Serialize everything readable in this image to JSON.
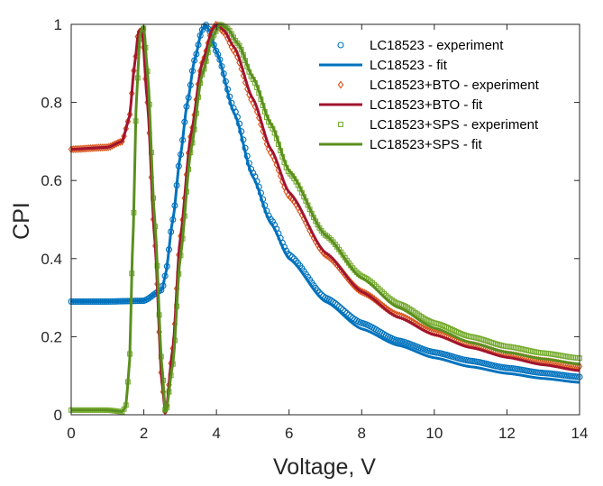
{
  "chart_data": {
    "type": "scatter",
    "title": "",
    "xlabel": "Voltage, V",
    "ylabel": "CPI",
    "xlim": [
      0,
      14
    ],
    "ylim": [
      0,
      1
    ],
    "xticks": [
      "0",
      "2",
      "4",
      "6",
      "8",
      "10",
      "12",
      "14"
    ],
    "yticks": [
      "0",
      "0.2",
      "0.4",
      "0.6",
      "0.8",
      "1"
    ],
    "grid": false,
    "legend_position": "top-right",
    "series": [
      {
        "name": "LC18523 - experiment",
        "kind": "markers",
        "marker": "circle",
        "color": "#0072BD",
        "x": [
          0,
          1.0,
          2.0,
          2.5,
          2.6,
          2.8,
          3.0,
          3.2,
          3.4,
          3.6,
          3.7,
          3.8,
          4.0,
          4.5,
          5.0,
          5.5,
          6.0,
          7.0,
          8.0,
          9.0,
          10.0,
          11.0,
          12.0,
          13.0,
          14.0
        ],
        "y": [
          0.29,
          0.29,
          0.292,
          0.32,
          0.36,
          0.5,
          0.66,
          0.8,
          0.91,
          0.985,
          1.0,
          0.985,
          0.93,
          0.78,
          0.62,
          0.5,
          0.41,
          0.3,
          0.235,
          0.19,
          0.16,
          0.138,
          0.12,
          0.107,
          0.097
        ]
      },
      {
        "name": "LC18523 - fit",
        "kind": "line",
        "color": "#0072BD",
        "x": [
          0,
          1.0,
          2.0,
          2.5,
          2.6,
          2.8,
          3.0,
          3.2,
          3.4,
          3.6,
          3.7,
          3.8,
          4.0,
          4.5,
          5.0,
          5.5,
          6.0,
          7.0,
          8.0,
          9.0,
          10.0,
          11.0,
          12.0,
          13.0,
          14.0
        ],
        "y": [
          0.29,
          0.29,
          0.292,
          0.32,
          0.36,
          0.5,
          0.66,
          0.8,
          0.91,
          0.985,
          1.0,
          0.985,
          0.93,
          0.77,
          0.61,
          0.49,
          0.4,
          0.29,
          0.22,
          0.178,
          0.146,
          0.123,
          0.106,
          0.093,
          0.083
        ]
      },
      {
        "name": "LC18523+BTO - experiment",
        "kind": "markers",
        "marker": "diamond",
        "color": "#D95319",
        "x": [
          0,
          1.0,
          1.4,
          1.6,
          1.75,
          1.85,
          1.95,
          2.1,
          2.3,
          2.5,
          2.6,
          2.8,
          3.0,
          3.3,
          3.6,
          3.9,
          4.0,
          4.2,
          4.5,
          5.0,
          5.5,
          6.0,
          7.0,
          8.0,
          9.0,
          10.0,
          11.0,
          12.0,
          13.0,
          14.0
        ],
        "y": [
          0.68,
          0.685,
          0.7,
          0.76,
          0.9,
          0.98,
          0.985,
          0.8,
          0.45,
          0.08,
          0.0,
          0.17,
          0.45,
          0.72,
          0.9,
          0.99,
          1.0,
          0.98,
          0.93,
          0.8,
          0.67,
          0.56,
          0.41,
          0.315,
          0.255,
          0.21,
          0.18,
          0.155,
          0.138,
          0.124
        ]
      },
      {
        "name": "LC18523+BTO - fit",
        "kind": "line",
        "color": "#A2142F",
        "x": [
          0,
          1.0,
          1.4,
          1.6,
          1.75,
          1.85,
          1.95,
          2.1,
          2.3,
          2.5,
          2.6,
          2.8,
          3.0,
          3.3,
          3.6,
          3.9,
          4.0,
          4.2,
          4.5,
          5.0,
          5.5,
          6.0,
          7.0,
          8.0,
          9.0,
          10.0,
          11.0,
          12.0,
          13.0,
          14.0
        ],
        "y": [
          0.68,
          0.685,
          0.7,
          0.76,
          0.9,
          0.98,
          0.99,
          0.8,
          0.45,
          0.08,
          0.0,
          0.17,
          0.45,
          0.72,
          0.9,
          0.99,
          1.0,
          0.985,
          0.94,
          0.81,
          0.68,
          0.57,
          0.415,
          0.315,
          0.25,
          0.205,
          0.172,
          0.147,
          0.128,
          0.113
        ]
      },
      {
        "name": "LC18523+SPS - experiment",
        "kind": "markers",
        "marker": "square",
        "color": "#77AC30",
        "x": [
          0,
          1.0,
          1.4,
          1.5,
          1.6,
          1.7,
          1.8,
          1.9,
          2.0,
          2.1,
          2.3,
          2.5,
          2.6,
          2.8,
          3.0,
          3.3,
          3.6,
          3.9,
          4.1,
          4.3,
          4.6,
          5.0,
          5.5,
          6.0,
          7.0,
          8.0,
          9.0,
          10.0,
          11.0,
          12.0,
          13.0,
          14.0
        ],
        "y": [
          0.012,
          0.012,
          0.008,
          0.02,
          0.12,
          0.45,
          0.82,
          0.98,
          0.99,
          0.88,
          0.5,
          0.12,
          0.0,
          0.13,
          0.4,
          0.68,
          0.87,
          0.97,
          1.0,
          0.99,
          0.95,
          0.86,
          0.74,
          0.62,
          0.46,
          0.355,
          0.285,
          0.235,
          0.2,
          0.175,
          0.158,
          0.145
        ]
      },
      {
        "name": "LC18523+SPS - fit",
        "kind": "line",
        "color": "#5B8F1E",
        "x": [
          0,
          1.0,
          1.4,
          1.5,
          1.6,
          1.7,
          1.8,
          1.9,
          2.0,
          2.1,
          2.3,
          2.5,
          2.6,
          2.8,
          3.0,
          3.3,
          3.6,
          3.9,
          4.1,
          4.3,
          4.6,
          5.0,
          5.5,
          6.0,
          7.0,
          8.0,
          9.0,
          10.0,
          11.0,
          12.0,
          13.0,
          14.0
        ],
        "y": [
          0.012,
          0.012,
          0.008,
          0.02,
          0.12,
          0.45,
          0.82,
          0.98,
          0.995,
          0.88,
          0.5,
          0.12,
          0.0,
          0.13,
          0.4,
          0.68,
          0.87,
          0.97,
          1.0,
          0.99,
          0.95,
          0.865,
          0.745,
          0.625,
          0.46,
          0.35,
          0.275,
          0.222,
          0.185,
          0.16,
          0.143,
          0.13
        ]
      }
    ]
  }
}
